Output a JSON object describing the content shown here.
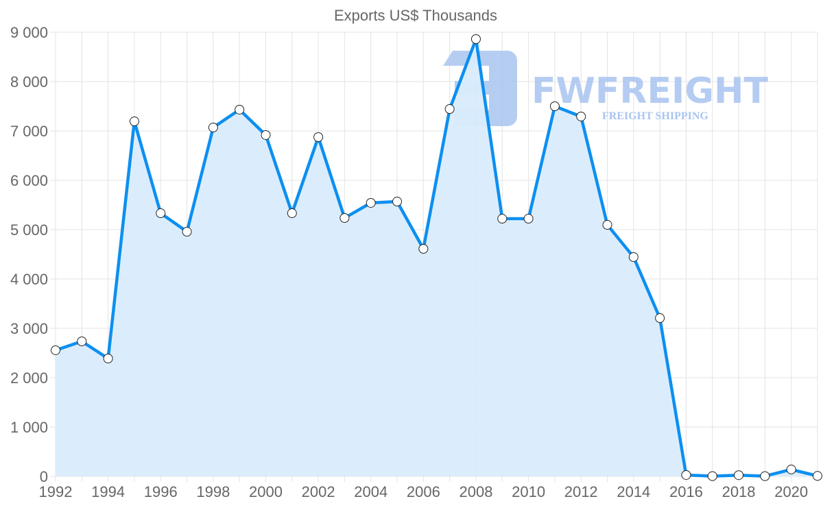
{
  "chart_data": {
    "type": "area",
    "title": "Exports US$ Thousands",
    "xlabel": "",
    "ylabel": "",
    "xlim": [
      1992,
      2021
    ],
    "ylim": [
      0,
      9000
    ],
    "grid": true,
    "x_ticks": [
      "1992",
      "1994",
      "1996",
      "1998",
      "2000",
      "2002",
      "2004",
      "2006",
      "2008",
      "2010",
      "2012",
      "2014",
      "2016",
      "2018",
      "2020"
    ],
    "y_ticks": [
      "0",
      "1 000",
      "2 000",
      "3 000",
      "4 000",
      "5 000",
      "6 000",
      "7 000",
      "8 000",
      "9 000"
    ],
    "x": [
      1992,
      1993,
      1994,
      1995,
      1996,
      1997,
      1998,
      1999,
      2000,
      2001,
      2002,
      2003,
      2004,
      2005,
      2006,
      2007,
      2008,
      2009,
      2010,
      2011,
      2012,
      2013,
      2014,
      2015,
      2016,
      2017,
      2018,
      2019,
      2020,
      2021
    ],
    "series": [
      {
        "name": "Exports",
        "color": "#0d8ff0",
        "fill": "#d9ecfc",
        "values": [
          2556,
          2736,
          2389,
          7194,
          5333,
          4958,
          7069,
          7431,
          6917,
          5333,
          6875,
          5236,
          5542,
          5569,
          4611,
          7444,
          8861,
          5222,
          5222,
          7500,
          7292,
          5097,
          4444,
          3208,
          28,
          5,
          25,
          5,
          140,
          10
        ]
      }
    ]
  },
  "watermark": {
    "brand": "FWFREIGHT",
    "tagline": "FREIGHT SHIPPING"
  }
}
